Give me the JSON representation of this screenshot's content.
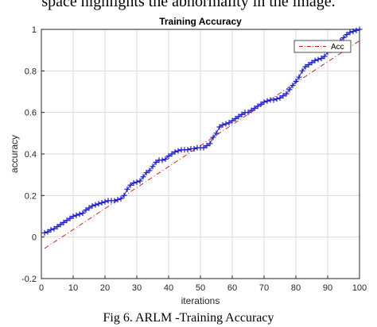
{
  "header_fragment": "space highlights the abnormality in the image.",
  "figure_caption": "Fig 6. ARLM -Training Accuracy",
  "chart_data": {
    "type": "line",
    "title": "Training Accuracy",
    "xlabel": "iterations",
    "ylabel": "accuracy",
    "xlim": [
      0,
      100
    ],
    "ylim": [
      -0.2,
      1
    ],
    "xticks": [
      0,
      10,
      20,
      30,
      40,
      50,
      60,
      70,
      80,
      90,
      100
    ],
    "yticks": [
      -0.2,
      0,
      0.2,
      0.4,
      0.6,
      0.8,
      1
    ],
    "grid": true,
    "legend_position": "top-right",
    "series": [
      {
        "name": "",
        "style": "blue-plus-markers",
        "color": "#1f1fcf",
        "x": [
          1,
          2,
          3,
          4,
          5,
          6,
          7,
          8,
          9,
          10,
          11,
          12,
          13,
          14,
          15,
          16,
          17,
          18,
          19,
          20,
          21,
          22,
          23,
          24,
          25,
          26,
          27,
          28,
          29,
          30,
          31,
          32,
          33,
          34,
          35,
          36,
          37,
          38,
          39,
          40,
          41,
          42,
          43,
          44,
          45,
          46,
          47,
          48,
          49,
          50,
          51,
          52,
          53,
          54,
          55,
          56,
          57,
          58,
          59,
          60,
          61,
          62,
          63,
          64,
          65,
          66,
          67,
          68,
          69,
          70,
          71,
          72,
          73,
          74,
          75,
          76,
          77,
          78,
          79,
          80,
          81,
          82,
          83,
          84,
          85,
          86,
          87,
          88,
          89,
          90,
          91,
          92,
          93,
          94,
          95,
          96,
          97,
          98,
          99,
          100
        ],
        "y": [
          0.02,
          0.025,
          0.035,
          0.04,
          0.05,
          0.06,
          0.07,
          0.08,
          0.09,
          0.1,
          0.105,
          0.11,
          0.115,
          0.13,
          0.14,
          0.15,
          0.155,
          0.16,
          0.165,
          0.17,
          0.175,
          0.175,
          0.175,
          0.18,
          0.185,
          0.2,
          0.23,
          0.25,
          0.26,
          0.265,
          0.27,
          0.29,
          0.31,
          0.32,
          0.34,
          0.36,
          0.37,
          0.37,
          0.375,
          0.39,
          0.4,
          0.41,
          0.415,
          0.42,
          0.42,
          0.42,
          0.425,
          0.425,
          0.43,
          0.43,
          0.43,
          0.44,
          0.45,
          0.48,
          0.5,
          0.53,
          0.54,
          0.545,
          0.55,
          0.56,
          0.57,
          0.58,
          0.59,
          0.6,
          0.6,
          0.61,
          0.62,
          0.63,
          0.64,
          0.65,
          0.655,
          0.66,
          0.66,
          0.665,
          0.67,
          0.68,
          0.69,
          0.71,
          0.73,
          0.75,
          0.77,
          0.8,
          0.82,
          0.83,
          0.84,
          0.85,
          0.855,
          0.86,
          0.87,
          0.89,
          0.9,
          0.91,
          0.93,
          0.945,
          0.96,
          0.975,
          0.985,
          0.99,
          0.995,
          1.0
        ]
      },
      {
        "name": "Acc",
        "style": "dash-dot",
        "color": "#d62020",
        "x": [
          1,
          100
        ],
        "y": [
          -0.055,
          0.945
        ]
      }
    ]
  }
}
